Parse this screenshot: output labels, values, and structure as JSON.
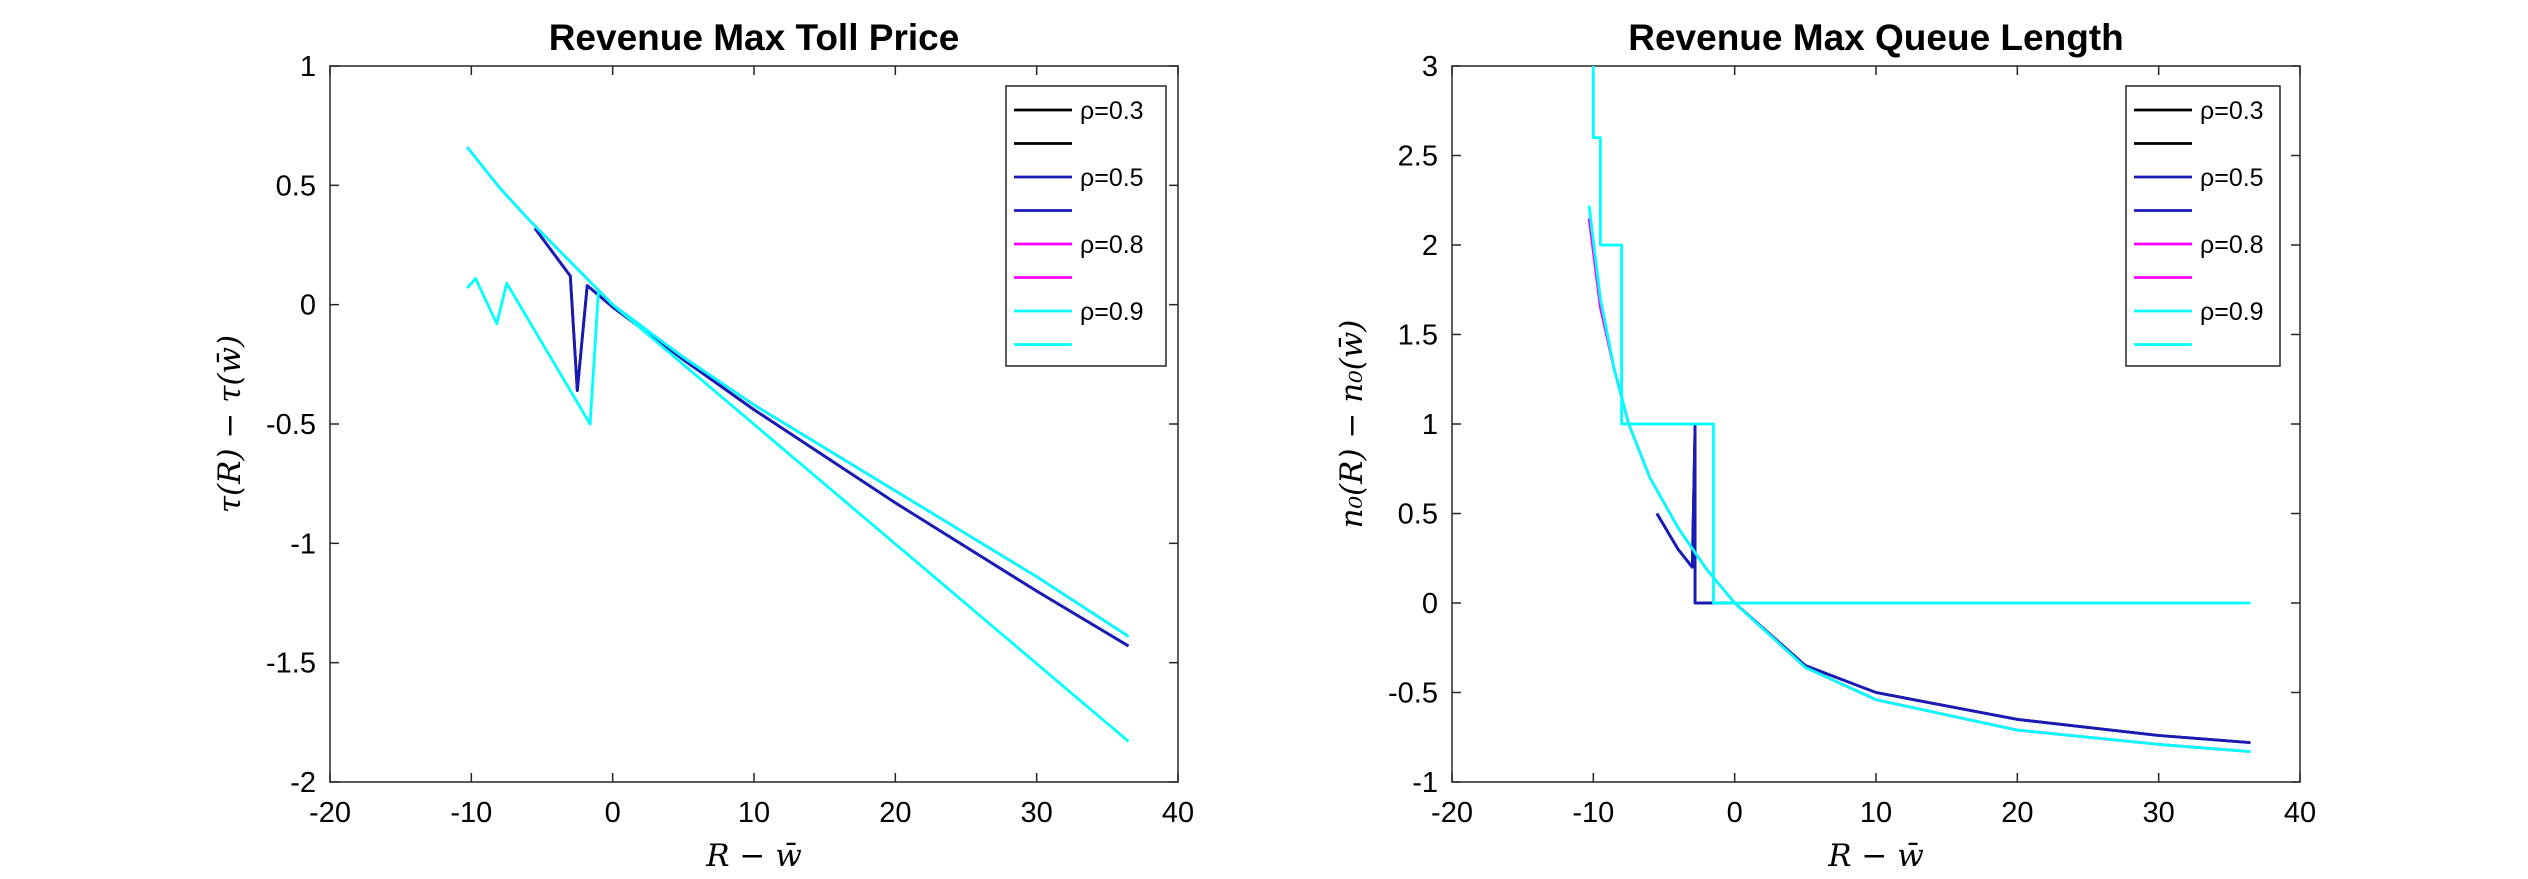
{
  "chart_data": [
    {
      "type": "line",
      "title": "Revenue Max Toll Price",
      "xlabel": "R − w̄",
      "ylabel": "τ(R) − τ(w̄)",
      "xlim": [
        -20,
        40
      ],
      "ylim": [
        -2,
        1
      ],
      "xticks": [
        -20,
        -10,
        0,
        10,
        20,
        30,
        40
      ],
      "yticks": [
        -2,
        -1.5,
        -1,
        -0.5,
        0,
        0.5,
        1
      ],
      "legend_position": "top-right",
      "legend": [
        "ρ=0.3",
        "",
        "ρ=0.5",
        "",
        "ρ=0.8",
        "",
        "ρ=0.9",
        ""
      ],
      "series": [
        {
          "name": "ρ=0.3",
          "color": "#000000",
          "x": [
            -5.5,
            -3,
            -2.5,
            -1.8,
            0,
            5,
            10,
            20,
            30,
            36.5
          ],
          "y": [
            0.32,
            0.12,
            -0.36,
            0.08,
            -0.01,
            -0.23,
            -0.44,
            -0.83,
            -1.2,
            -1.43
          ]
        },
        {
          "name": "ρ=0.5",
          "color": "#1a1ab8",
          "x": [
            -5.5,
            -3,
            -2.5,
            -1.8,
            0,
            5,
            10,
            20,
            30,
            36.5
          ],
          "y": [
            0.32,
            0.12,
            -0.36,
            0.08,
            -0.01,
            -0.23,
            -0.44,
            -0.83,
            -1.2,
            -1.43
          ]
        },
        {
          "name": "ρ=0.8",
          "color": "#ff00ff",
          "x": [
            -10.3,
            -8,
            -6,
            -4,
            -2,
            0,
            5,
            10,
            20,
            30,
            36.5
          ],
          "y": [
            0.66,
            0.49,
            0.36,
            0.24,
            0.12,
            0.0,
            -0.22,
            -0.42,
            -0.78,
            -1.14,
            -1.39
          ]
        },
        {
          "name": "ρ=0.9",
          "color": "#00ffff",
          "x": [
            -10.3,
            -8,
            -6,
            -4,
            -2,
            0,
            5,
            10,
            20,
            30,
            36.5
          ],
          "y": [
            0.66,
            0.49,
            0.36,
            0.24,
            0.12,
            0.0,
            -0.22,
            -0.42,
            -0.78,
            -1.14,
            -1.39
          ]
        },
        {
          "name": "ρ=0.9",
          "color": "#00ffff",
          "x": [
            -10.3,
            -9.7,
            -8.2,
            -7.5,
            -1.6,
            -1.0,
            0,
            36.5
          ],
          "y": [
            0.07,
            0.11,
            -0.08,
            0.09,
            -0.5,
            0.06,
            0.0,
            -1.83
          ]
        }
      ]
    },
    {
      "type": "line",
      "title": "Revenue Max Queue Length",
      "xlabel": "R − w̄",
      "ylabel": "n₀(R) − n₀(w̄)",
      "xlim": [
        -20,
        40
      ],
      "ylim": [
        -1,
        3
      ],
      "xticks": [
        -20,
        -10,
        0,
        10,
        20,
        30,
        40
      ],
      "yticks": [
        -1,
        -0.5,
        0,
        0.5,
        1,
        1.5,
        2,
        2.5,
        3
      ],
      "legend_position": "top-right",
      "legend": [
        "ρ=0.3",
        "",
        "ρ=0.5",
        "",
        "ρ=0.8",
        "",
        "ρ=0.9",
        ""
      ],
      "series": [
        {
          "name": "ρ=0.3",
          "color": "#000000",
          "x": [
            -5.5,
            -4,
            -3,
            -2.8,
            -2.8,
            -1.5,
            0,
            5,
            10,
            20,
            30,
            36.5
          ],
          "y": [
            0.5,
            0.3,
            0.2,
            1.0,
            0.0,
            0.0,
            0.0,
            -0.35,
            -0.5,
            -0.65,
            -0.74,
            -0.78
          ]
        },
        {
          "name": "ρ=0.5",
          "color": "#1a1ab8",
          "x": [
            -5.5,
            -4,
            -3,
            -2.8,
            -2.8,
            -1.5,
            0,
            5,
            10,
            20,
            30,
            36.5
          ],
          "y": [
            0.5,
            0.3,
            0.2,
            1.0,
            0.0,
            0.0,
            0.0,
            -0.35,
            -0.5,
            -0.65,
            -0.74,
            -0.78
          ]
        },
        {
          "name": "ρ=0.8",
          "color": "#ff00ff",
          "x": [
            -10.3,
            -9.5,
            -8.5,
            -7.5,
            -6,
            -4,
            -2,
            0,
            5,
            10,
            20,
            30,
            36.5
          ],
          "y": [
            2.15,
            1.65,
            1.3,
            1.0,
            0.7,
            0.42,
            0.19,
            0.0,
            -0.36,
            -0.54,
            -0.71,
            -0.79,
            -0.83
          ]
        },
        {
          "name": "ρ=0.9",
          "color": "#00ffff",
          "x": [
            -10.3,
            -9.5,
            -8.5,
            -7.5,
            -6,
            -4,
            -2,
            0,
            5,
            10,
            20,
            30,
            36.5
          ],
          "y": [
            2.22,
            1.7,
            1.3,
            1.0,
            0.7,
            0.42,
            0.19,
            0.0,
            -0.36,
            -0.54,
            -0.71,
            -0.79,
            -0.83
          ]
        },
        {
          "name": "ρ=0.9",
          "color": "#00ffff",
          "x": [
            -10.0,
            -10.0,
            -9.5,
            -9.5,
            -8.0,
            -8.0,
            -7.5,
            -7.5,
            -1.5,
            -1.5,
            36.5
          ],
          "y": [
            3.0,
            2.6,
            2.6,
            2.0,
            2.0,
            1.0,
            1.0,
            1.0,
            1.0,
            0.0,
            0.0
          ]
        }
      ]
    }
  ]
}
